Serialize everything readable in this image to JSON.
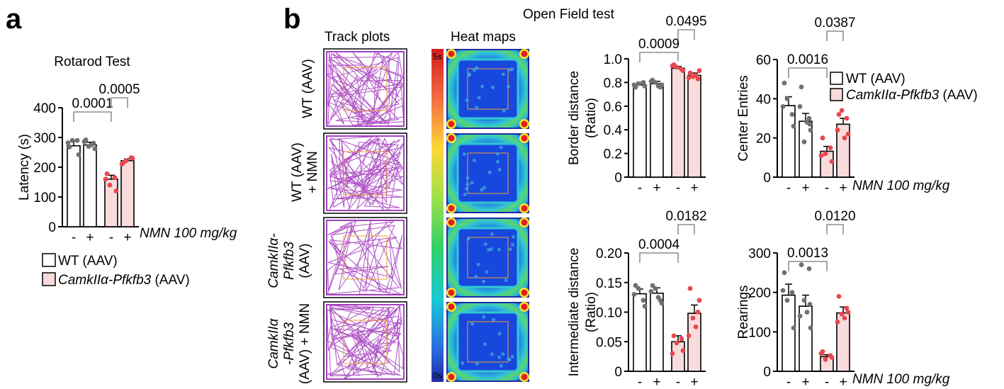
{
  "figure": {
    "panel_a": "a",
    "panel_b": "b",
    "open_field_title": "Open Field test",
    "track_plots_label": "Track plots",
    "heat_maps_label": "Heat maps",
    "colorbar_top": "5s",
    "colorbar_bottom": "0s",
    "row_labels": [
      {
        "line1": "WT (AAV)",
        "line2": "",
        "line3": ""
      },
      {
        "line1": "WT (AAV)",
        "line2": "+ NMN",
        "line3": ""
      },
      {
        "line1": "CamkIIα-",
        "line2": "Pfkfb3",
        "line3": "(AAV)"
      },
      {
        "line1": "CamkIIα",
        "line2": "-Pfkfb3",
        "line3": "(AAV) + NMN"
      }
    ],
    "legend": [
      {
        "label_italic": "",
        "label_plain": "WT (AAV)",
        "color": "#ffffff"
      },
      {
        "label_italic": "CamkIIα-Pfkfb3",
        "label_plain": " (AAV)",
        "color": "#f9dbdc"
      }
    ],
    "treatment_label": "NMN 100 mg/kg",
    "treatment_signs": [
      "-",
      "+",
      "-",
      "+"
    ]
  },
  "colors": {
    "wt_bar": "#ffffff",
    "ko_bar": "#f9dbdc",
    "wt_dot": "#707070",
    "ko_dot": "#e8474c",
    "track": "#a53fbf",
    "zone": "#f0a030"
  },
  "chart_data": [
    {
      "id": "rotarod",
      "type": "bar",
      "title": "Rotarod Test",
      "ylabel": "Latency (s)",
      "ylim": [
        0,
        400
      ],
      "yticks": [
        0,
        100,
        200,
        300,
        400
      ],
      "categories": [
        "WT (AAV) -",
        "WT (AAV) +",
        "CamkIIα-Pfkfb3 (AAV) -",
        "CamkIIα-Pfkfb3 (AAV) +"
      ],
      "values": [
        272,
        275,
        160,
        222
      ],
      "errors": [
        16,
        9,
        13,
        6
      ],
      "points": [
        [
          268,
          290,
          290,
          242,
          282
        ],
        [
          292,
          281,
          270,
          262,
          286,
          275
        ],
        [
          178,
          165,
          140,
          120,
          160
        ],
        [
          215,
          232,
          222,
          230,
          210
        ]
      ],
      "comparisons": [
        {
          "from": 0,
          "to": 2,
          "p": "0.0001"
        },
        {
          "from": 2,
          "to": 3,
          "p": "0.0005"
        }
      ]
    },
    {
      "id": "border",
      "type": "bar",
      "title": "",
      "ylabel": "Border distance (Ratio)",
      "ylim": [
        0,
        1.0
      ],
      "yticks": [
        "0",
        "0.2",
        "0.4",
        "0.6",
        "0.8",
        "1.0"
      ],
      "categories": [
        "WT (AAV) -",
        "WT (AAV) +",
        "CamkIIα-Pfkfb3 (AAV) -",
        "CamkIIα-Pfkfb3 (AAV) +"
      ],
      "values": [
        0.78,
        0.79,
        0.92,
        0.86
      ],
      "errors": [
        0.02,
        0.02,
        0.015,
        0.02
      ],
      "points": [
        [
          0.76,
          0.8,
          0.79,
          0.77,
          0.78
        ],
        [
          0.82,
          0.76,
          0.8,
          0.78,
          0.81,
          0.77
        ],
        [
          0.95,
          0.91,
          0.93,
          0.9,
          0.94
        ],
        [
          0.88,
          0.83,
          0.85,
          0.9,
          0.84,
          0.86
        ]
      ],
      "comparisons": [
        {
          "from": 0,
          "to": 2,
          "p": "0.0009"
        },
        {
          "from": 2,
          "to": 3,
          "p": "0.0495"
        }
      ]
    },
    {
      "id": "center",
      "type": "bar",
      "title": "",
      "ylabel": "Center Entries",
      "ylim": [
        0,
        60
      ],
      "yticks": [
        0,
        20,
        40,
        60
      ],
      "categories": [
        "WT (AAV) -",
        "WT (AAV) +",
        "CamkIIα-Pfkfb3 (AAV) -",
        "CamkIIα-Pfkfb3 (AAV) +"
      ],
      "values": [
        36.5,
        28.5,
        13.2,
        27
      ],
      "errors": [
        4.5,
        4,
        2.5,
        3
      ],
      "points": [
        [
          48,
          32,
          40,
          26,
          36
        ],
        [
          46,
          30,
          18,
          24,
          36,
          28,
          27
        ],
        [
          20,
          15,
          12,
          8,
          11
        ],
        [
          32,
          30,
          34,
          22,
          24,
          20
        ]
      ],
      "comparisons": [
        {
          "from": 0,
          "to": 2,
          "p": "0.0016"
        },
        {
          "from": 2,
          "to": 3,
          "p": "0.0387"
        }
      ]
    },
    {
      "id": "intermediate",
      "type": "bar",
      "title": "",
      "ylabel": "Intermediate distance (Ratio)",
      "ylim": [
        0,
        0.2
      ],
      "yticks": [
        "0",
        "0.05",
        "0.10",
        "0.15",
        "0.20"
      ],
      "categories": [
        "WT (AAV) -",
        "WT (AAV) +",
        "CamkIIα-Pfkfb3 (AAV) -",
        "CamkIIα-Pfkfb3 (AAV) +"
      ],
      "values": [
        0.131,
        0.132,
        0.05,
        0.098
      ],
      "errors": [
        0.008,
        0.009,
        0.01,
        0.014
      ],
      "points": [
        [
          0.145,
          0.12,
          0.14,
          0.11,
          0.13
        ],
        [
          0.145,
          0.12,
          0.14,
          0.115,
          0.135,
          0.125
        ],
        [
          0.06,
          0.055,
          0.048,
          0.035,
          0.03
        ],
        [
          0.14,
          0.1,
          0.09,
          0.12,
          0.06,
          0.075
        ]
      ],
      "comparisons": [
        {
          "from": 0,
          "to": 2,
          "p": "0.0004"
        },
        {
          "from": 2,
          "to": 3,
          "p": "0.0182"
        }
      ]
    },
    {
      "id": "rearings",
      "type": "bar",
      "title": "",
      "ylabel": "Rearings",
      "ylim": [
        0,
        300
      ],
      "yticks": [
        0,
        100,
        200,
        300
      ],
      "categories": [
        "WT (AAV) -",
        "WT (AAV) +",
        "CamkIIα-Pfkfb3 (AAV) -",
        "CamkIIα-Pfkfb3 (AAV) +"
      ],
      "values": [
        193,
        165,
        37,
        148
      ],
      "errors": [
        28,
        28,
        5,
        15
      ],
      "points": [
        [
          250,
          200,
          180,
          110,
          205
        ],
        [
          270,
          260,
          180,
          110,
          140,
          150,
          170
        ],
        [
          50,
          40,
          30,
          35,
          45
        ],
        [
          190,
          160,
          145,
          150,
          125,
          135
        ]
      ],
      "comparisons": [
        {
          "from": 0,
          "to": 2,
          "p": "0.0013"
        },
        {
          "from": 2,
          "to": 3,
          "p": "0.0120"
        }
      ]
    }
  ]
}
